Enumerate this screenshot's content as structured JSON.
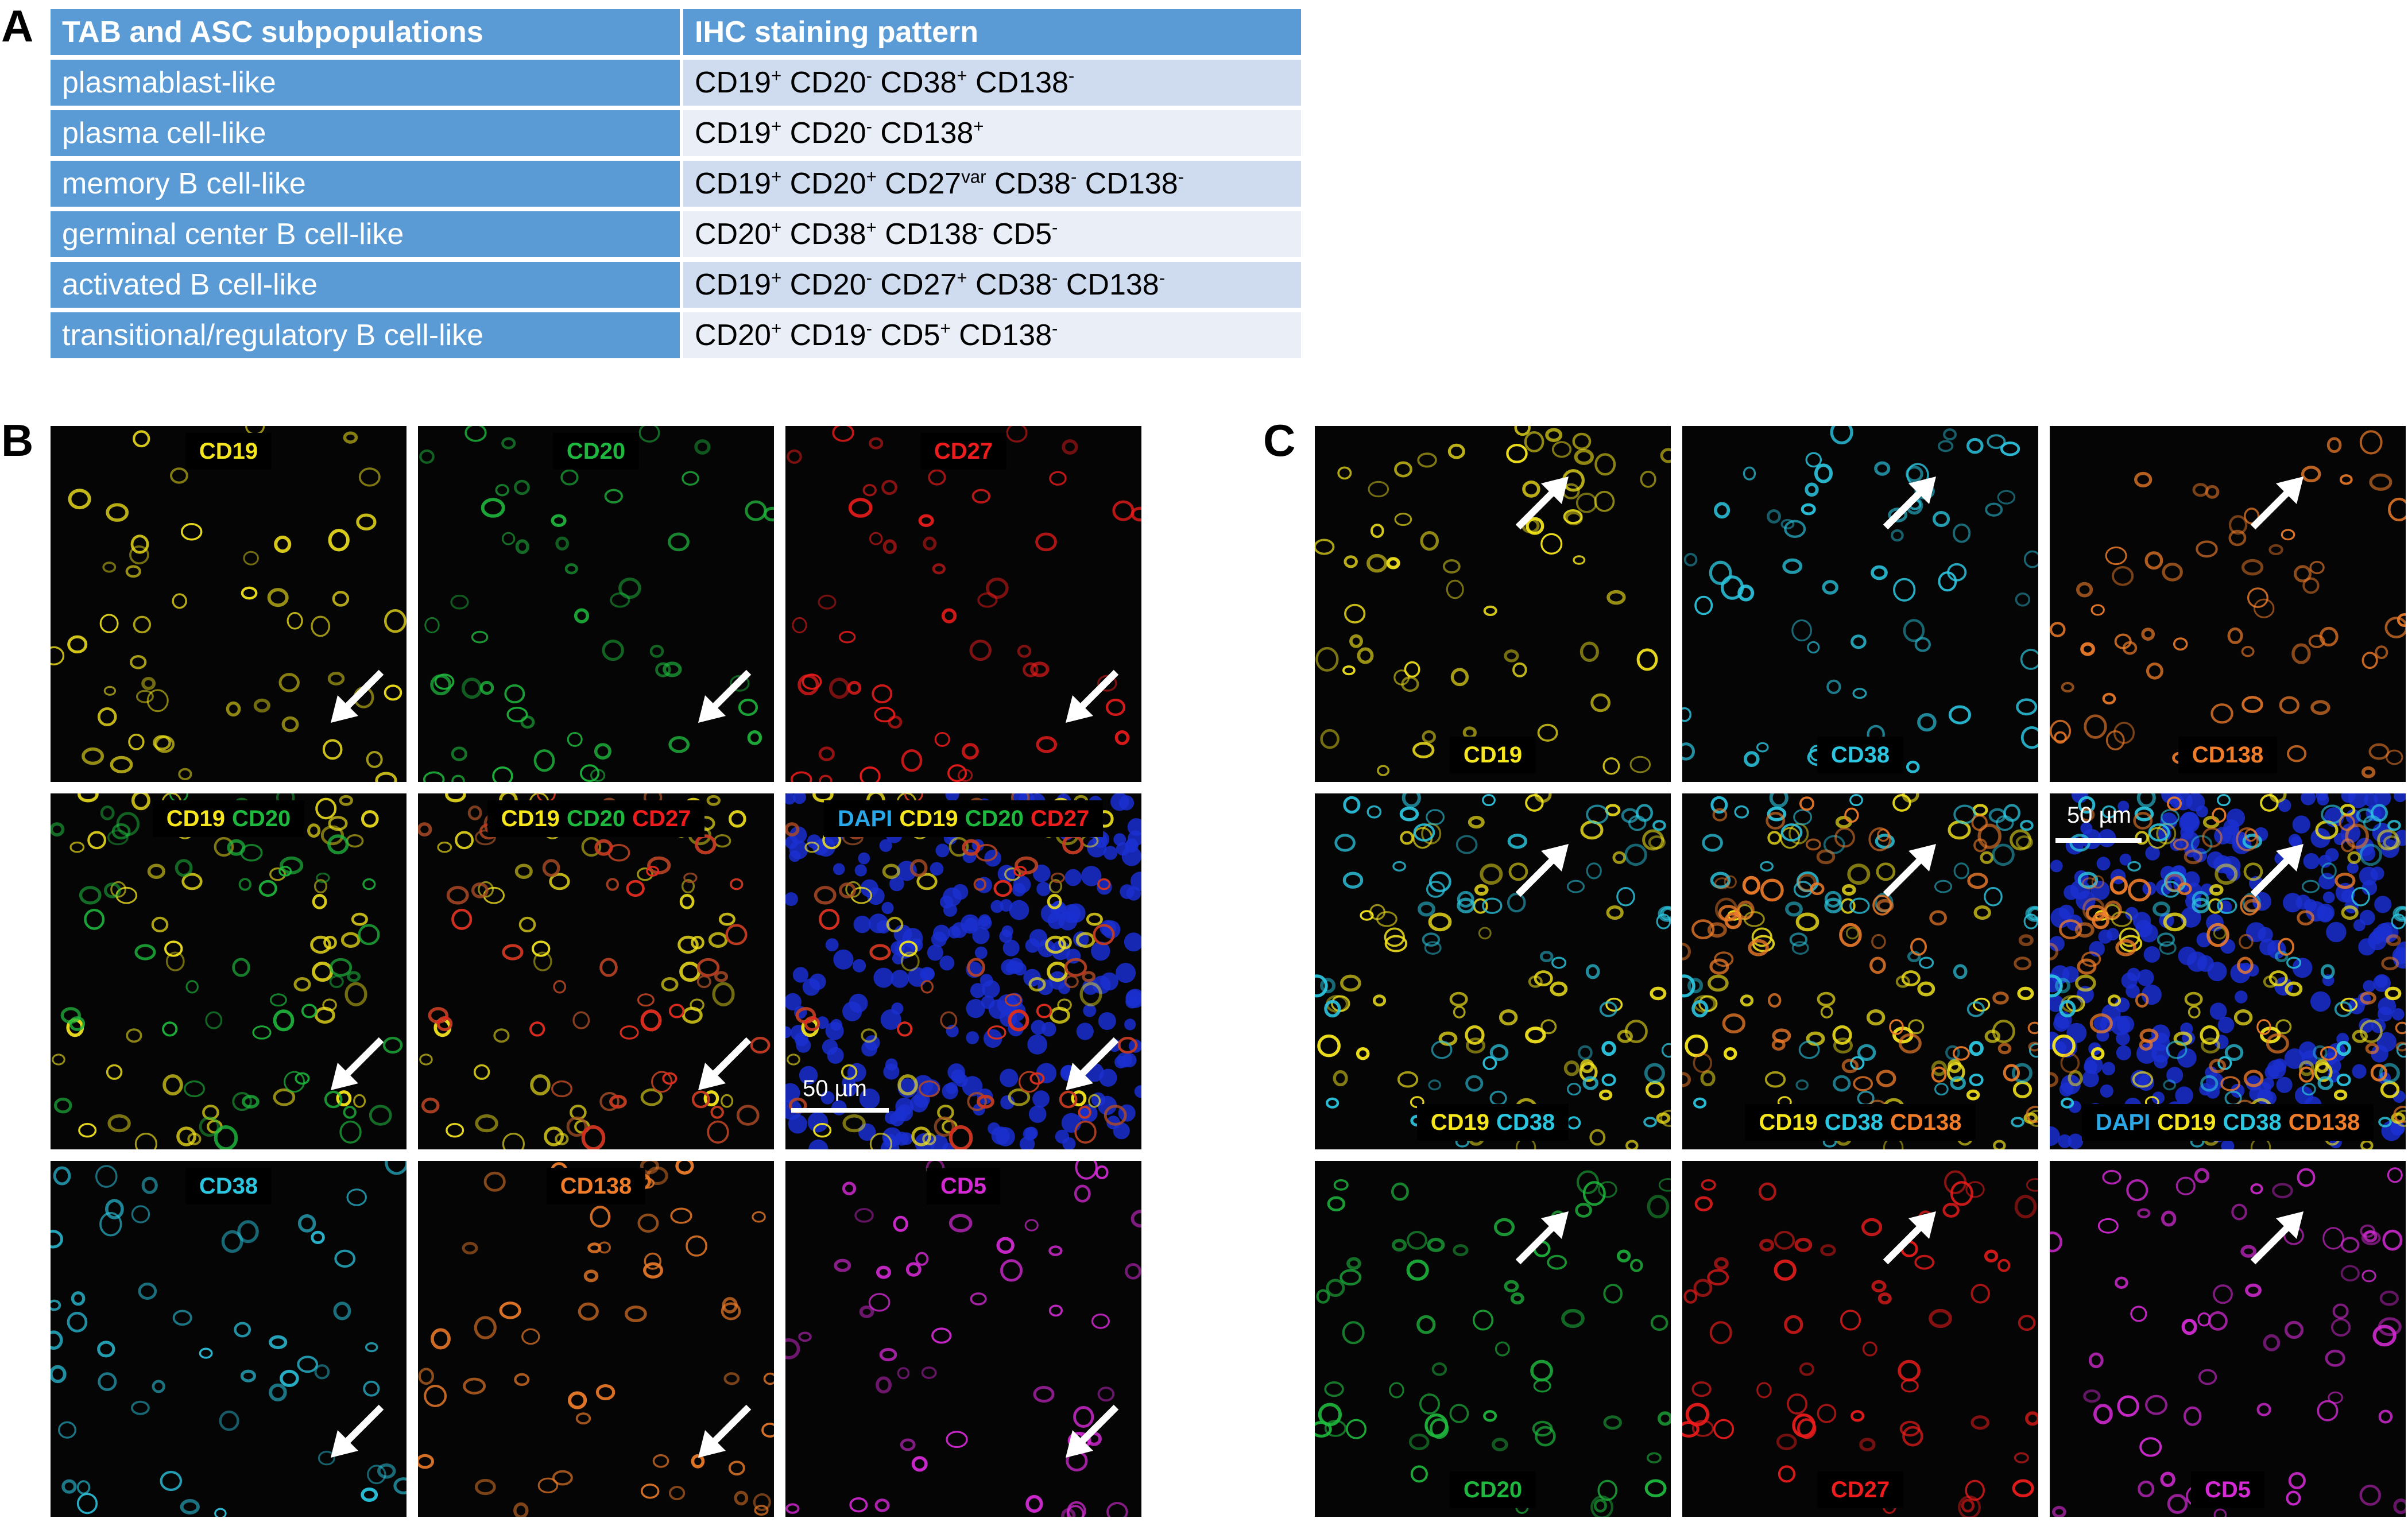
{
  "panel_a": {
    "letter": "A",
    "headers": [
      "TAB and ASC subpopulations",
      "IHC staining pattern"
    ],
    "rows": [
      {
        "name": "plasmablast-like",
        "markers": [
          [
            "CD19",
            "+"
          ],
          [
            "CD20",
            "-"
          ],
          [
            "CD38",
            "+"
          ],
          [
            "CD138",
            "-"
          ]
        ]
      },
      {
        "name": "plasma cell-like",
        "markers": [
          [
            "CD19",
            "+"
          ],
          [
            "CD20",
            "-"
          ],
          [
            "CD138",
            "+"
          ]
        ]
      },
      {
        "name": "memory B cell-like",
        "markers": [
          [
            "CD19",
            "+"
          ],
          [
            "CD20",
            "+"
          ],
          [
            "CD27",
            "var"
          ],
          [
            "CD38",
            "-"
          ],
          [
            "CD138",
            "-"
          ]
        ]
      },
      {
        "name": "germinal center B cell-like",
        "markers": [
          [
            "CD20",
            "+"
          ],
          [
            "CD38",
            "+"
          ],
          [
            "CD138",
            "-"
          ],
          [
            "CD5",
            "-"
          ]
        ]
      },
      {
        "name": "activated B cell-like",
        "markers": [
          [
            "CD19",
            "+"
          ],
          [
            "CD20",
            "-"
          ],
          [
            "CD27",
            "+"
          ],
          [
            "CD38",
            "-"
          ],
          [
            "CD138",
            "-"
          ]
        ]
      },
      {
        "name": "transitional/regulatory B cell-like",
        "markers": [
          [
            "CD20",
            "+"
          ],
          [
            "CD19",
            "-"
          ],
          [
            "CD5",
            "+"
          ],
          [
            "CD138",
            "-"
          ]
        ]
      }
    ]
  },
  "colors": {
    "DAPI": "#2aa8e8",
    "CD19": "#f5e61e",
    "CD20": "#1fb83e",
    "CD27": "#ee1c1c",
    "CD38": "#2cc6e0",
    "CD138": "#ef7d2a",
    "CD5": "#d42ad4"
  },
  "panel_b": {
    "letter": "B",
    "scale_bar": "50 µm",
    "tiles": [
      {
        "labels": [
          "CD19"
        ],
        "pos": "top",
        "channels": [
          "CD19"
        ]
      },
      {
        "labels": [
          "CD20"
        ],
        "pos": "top",
        "channels": [
          "CD20"
        ]
      },
      {
        "labels": [
          "CD27"
        ],
        "pos": "top",
        "channels": [
          "CD27"
        ]
      },
      {
        "labels": [
          "CD19",
          "CD20"
        ],
        "pos": "top",
        "channels": [
          "CD19",
          "CD20"
        ]
      },
      {
        "labels": [
          "CD19",
          "CD20",
          "CD27"
        ],
        "pos": "top",
        "channels": [
          "CD19",
          "CD20",
          "CD27"
        ]
      },
      {
        "labels": [
          "DAPI",
          "CD19",
          "CD20",
          "CD27"
        ],
        "pos": "top",
        "channels": [
          "DAPI",
          "CD19",
          "CD20",
          "CD27"
        ]
      },
      {
        "labels": [
          "CD38"
        ],
        "pos": "top",
        "channels": [
          "CD38"
        ]
      },
      {
        "labels": [
          "CD138"
        ],
        "pos": "top",
        "channels": [
          "CD138"
        ]
      },
      {
        "labels": [
          "CD5"
        ],
        "pos": "top",
        "channels": [
          "CD5"
        ]
      }
    ]
  },
  "panel_c": {
    "letter": "C",
    "scale_bar": "50 µm",
    "tiles": [
      {
        "labels": [
          "CD19"
        ],
        "pos": "bottom",
        "channels": [
          "CD19"
        ]
      },
      {
        "labels": [
          "CD38"
        ],
        "pos": "bottom",
        "channels": [
          "CD38"
        ]
      },
      {
        "labels": [
          "CD138"
        ],
        "pos": "bottom",
        "channels": [
          "CD138"
        ]
      },
      {
        "labels": [
          "CD19",
          "CD38"
        ],
        "pos": "bottom",
        "channels": [
          "CD19",
          "CD38"
        ]
      },
      {
        "labels": [
          "CD19",
          "CD38",
          "CD138"
        ],
        "pos": "bottom",
        "channels": [
          "CD19",
          "CD38",
          "CD138"
        ]
      },
      {
        "labels": [
          "DAPI",
          "CD19",
          "CD38",
          "CD138"
        ],
        "pos": "bottom",
        "channels": [
          "DAPI",
          "CD19",
          "CD38",
          "CD138"
        ]
      },
      {
        "labels": [
          "CD20"
        ],
        "pos": "bottom",
        "channels": [
          "CD20"
        ]
      },
      {
        "labels": [
          "CD27"
        ],
        "pos": "bottom",
        "channels": [
          "CD27"
        ]
      },
      {
        "labels": [
          "CD5"
        ],
        "pos": "bottom",
        "channels": [
          "CD5"
        ]
      }
    ]
  }
}
